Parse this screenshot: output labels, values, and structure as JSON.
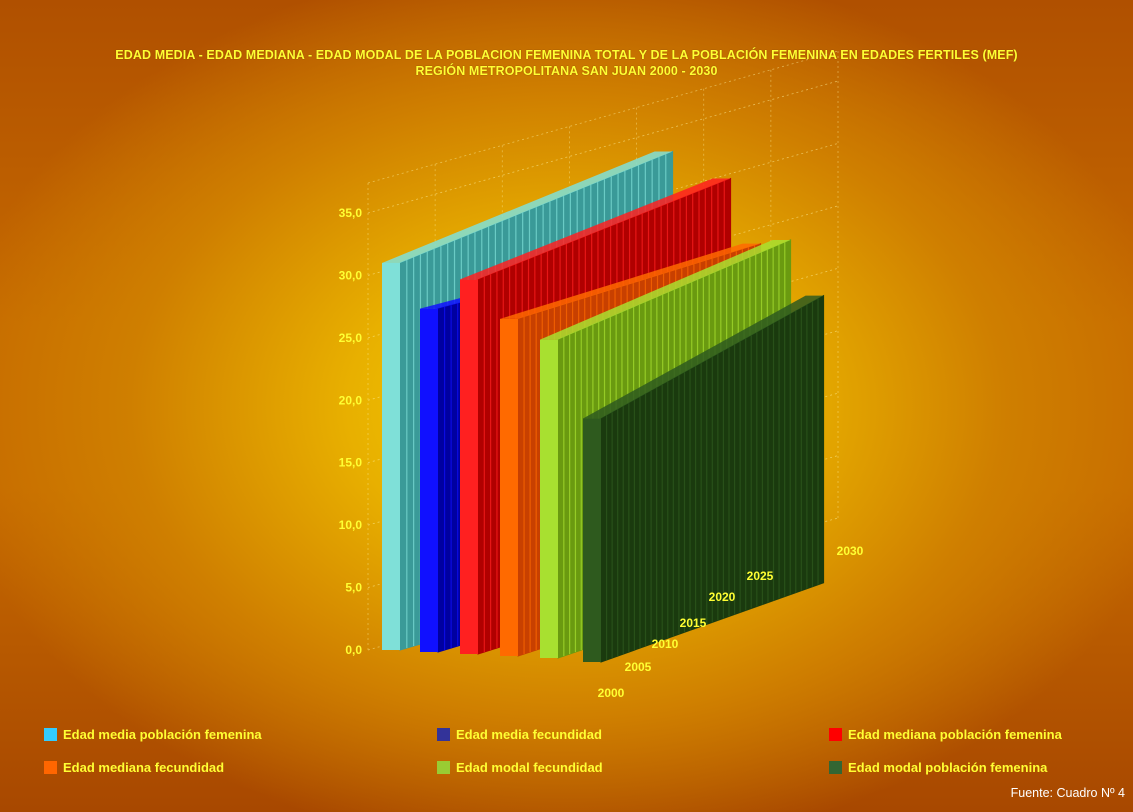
{
  "chart_data": {
    "type": "bar",
    "title": "EDAD MEDIA - EDAD MEDIANA - EDAD MODAL DE LA POBLACION FEMENINA TOTAL Y DE LA POBLACIÓN FEMENINA EN EDADES FERTILES  (MEF)",
    "subtitle": "REGIÓN METROPOLITANA  SAN JUAN 2000 - 2030",
    "xlabel": "",
    "ylabel": "",
    "ylim": [
      0,
      35
    ],
    "y_ticks": [
      "0,0",
      "5,0",
      "10,0",
      "15,0",
      "20,0",
      "25,0",
      "30,0",
      "35,0"
    ],
    "x_ticks": [
      "2000",
      "2005",
      "2010",
      "2015",
      "2020",
      "2025",
      "2030"
    ],
    "grid": true,
    "legend_position": "bottom",
    "source": "Fuente: Cuadro Nº 4",
    "series": [
      {
        "name": "Edad media población femenina",
        "color": "#33ccff",
        "front": "#7fe0d8",
        "side": "#3a9a98",
        "start": 31.0,
        "end": 36.5
      },
      {
        "name": "Edad media fecundidad",
        "color": "#333399",
        "front": "#1010ff",
        "side": "#0000a0",
        "start": 27.5,
        "end": 29.0
      },
      {
        "name": "Edad mediana población femenina",
        "color": "#ff0000",
        "front": "#ff2020",
        "side": "#b00000",
        "start": 30.0,
        "end": 34.5
      },
      {
        "name": "Edad mediana fecundidad",
        "color": "#ff6600",
        "front": "#ff6a00",
        "side": "#c84000",
        "start": 27.0,
        "end": 29.0
      },
      {
        "name": "Edad modal fecundidad",
        "color": "#99cc33",
        "front": "#a8e030",
        "side": "#6a9a10",
        "start": 25.5,
        "end": 29.5
      },
      {
        "name": "Edad modal población femenina",
        "color": "#336633",
        "front": "#2e5a1e",
        "side": "#1a3a0e",
        "start": 19.5,
        "end": 25.0
      }
    ]
  }
}
